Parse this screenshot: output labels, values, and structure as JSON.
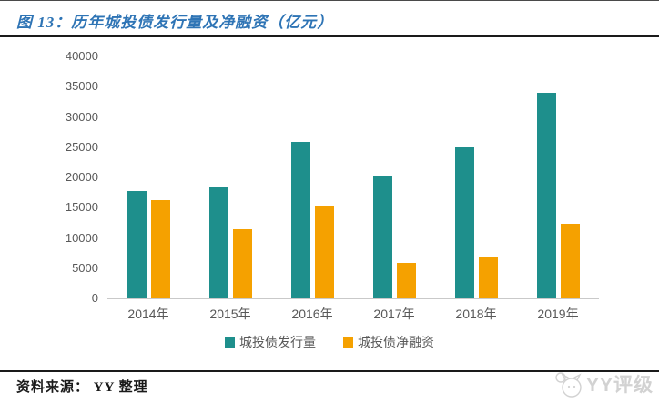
{
  "header": {
    "title": "图 13：历年城投债发行量及净融资（亿元）",
    "title_color": "#2E74B5"
  },
  "chart_data": {
    "type": "bar",
    "title": "历年城投债发行量及净融资（亿元）",
    "categories": [
      "2014年",
      "2015年",
      "2016年",
      "2017年",
      "2018年",
      "2019年"
    ],
    "series": [
      {
        "name": "城投债发行量",
        "color": "#1E8F8C",
        "values": [
          17700,
          18300,
          25800,
          20100,
          25000,
          34000
        ]
      },
      {
        "name": "城投债净融资",
        "color": "#F5A100",
        "values": [
          16300,
          11400,
          15200,
          5900,
          6700,
          12300
        ]
      }
    ],
    "xlabel": "",
    "ylabel": "",
    "ylim": [
      0,
      40000
    ],
    "yticks": [
      0,
      5000,
      10000,
      15000,
      20000,
      25000,
      30000,
      35000,
      40000
    ],
    "grid": false,
    "legend_position": "bottom",
    "axis_label_color": "#595959"
  },
  "footer": {
    "source_label": "资料来源：",
    "source_value": "YY 整理",
    "watermark": "YY评级"
  }
}
